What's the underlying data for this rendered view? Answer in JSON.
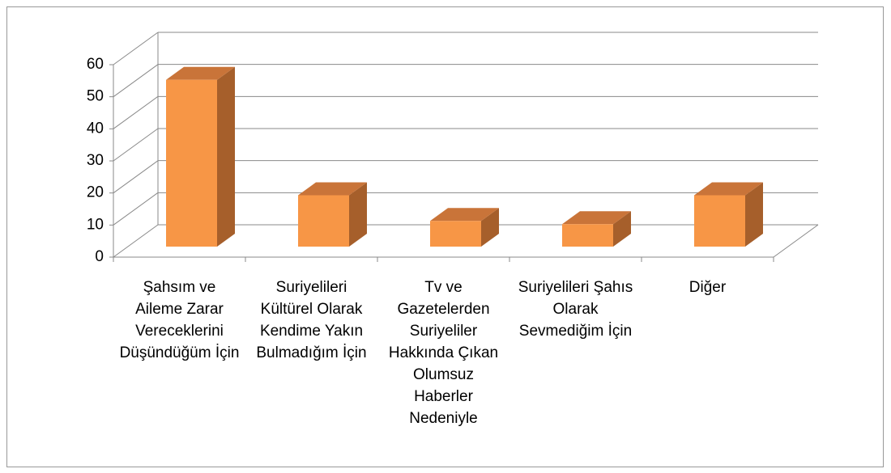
{
  "chart_data": {
    "type": "bar3d",
    "categories": [
      "Şahsım ve Aileme Zarar Vereceklerini Düşündüğüm İçin",
      "Suriyelileri Kültürel Olarak Kendime Yakın Bulmadığım İçin",
      "Tv ve Gazetelerden Suriyeliler Hakkında Çıkan Olumsuz Haberler Nedeniyle",
      "Suriyelileri Şahıs Olarak Sevmediğim İçin",
      "Diğer"
    ],
    "values": [
      52,
      16,
      8,
      7,
      16
    ],
    "color": "#f79646",
    "ylim": [
      0,
      60
    ],
    "yticks": [
      0,
      10,
      20,
      30,
      40,
      50,
      60
    ],
    "grid": true
  }
}
